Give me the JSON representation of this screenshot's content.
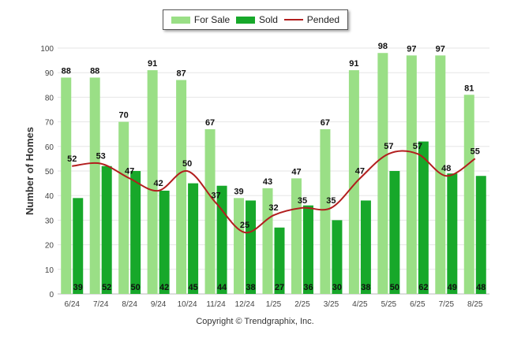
{
  "chart_data": {
    "type": "bar",
    "categories": [
      "6/24",
      "7/24",
      "8/24",
      "9/24",
      "10/24",
      "11/24",
      "12/24",
      "1/25",
      "2/25",
      "3/25",
      "4/25",
      "5/25",
      "6/25",
      "7/25",
      "8/25"
    ],
    "series": [
      {
        "name": "For Sale",
        "type": "bar",
        "color": "#9adf86",
        "values": [
          88,
          88,
          70,
          91,
          87,
          67,
          39,
          43,
          47,
          67,
          91,
          98,
          97,
          97,
          81
        ]
      },
      {
        "name": "Sold",
        "type": "bar",
        "color": "#17a82a",
        "values": [
          39,
          52,
          50,
          42,
          45,
          44,
          38,
          27,
          36,
          30,
          38,
          50,
          62,
          49,
          48
        ]
      },
      {
        "name": "Pended",
        "type": "line",
        "color": "#b21e1e",
        "values": [
          52,
          53,
          47,
          42,
          50,
          37,
          25,
          32,
          35,
          35,
          47,
          57,
          57,
          48,
          55
        ]
      }
    ],
    "ylabel": "Number of Homes",
    "ylim": [
      0,
      100
    ],
    "yticks": [
      0,
      10,
      20,
      30,
      40,
      50,
      60,
      70,
      80,
      90,
      100
    ],
    "grid": true,
    "legend_position": "top-center"
  },
  "legend": {
    "for_sale": "For Sale",
    "sold": "Sold",
    "pended": "Pended"
  },
  "footer": {
    "copyright": "Copyright © Trendgraphix, Inc."
  }
}
